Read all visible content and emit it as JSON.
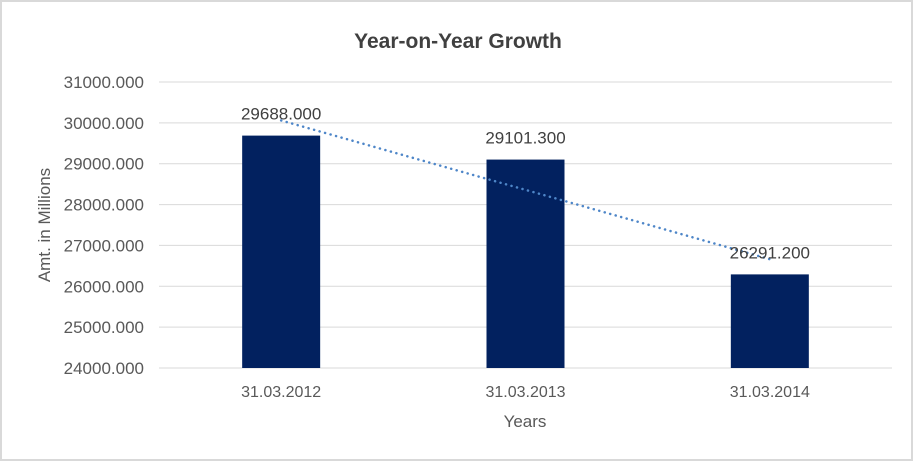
{
  "chart_data": {
    "type": "bar",
    "title": "Year-on-Year Growth",
    "xlabel": "Years",
    "ylabel": "Amt. in Millions",
    "categories": [
      "31.03.2012",
      "31.03.2013",
      "31.03.2014"
    ],
    "values": [
      29688.0,
      29101.3,
      26291.2
    ],
    "data_labels": [
      "29688.000",
      "29101.300",
      "26291.200"
    ],
    "ylim": [
      24000,
      31000
    ],
    "y_ticks": [
      "31000.000",
      "30000.000",
      "29000.000",
      "28000.000",
      "27000.000",
      "26000.000",
      "25000.000",
      "24000.000"
    ],
    "grid": true,
    "legend_position": "none",
    "trendline": {
      "type": "linear",
      "style": "dotted"
    },
    "colors": {
      "bar": "#02215f",
      "trendline": "#4e86c8",
      "gridline": "#d9d9d9",
      "title_text": "#404040",
      "axis_text": "#595959",
      "data_label_text": "#404040",
      "background": "#ffffff",
      "frame_border": "#d9d9d9"
    }
  }
}
